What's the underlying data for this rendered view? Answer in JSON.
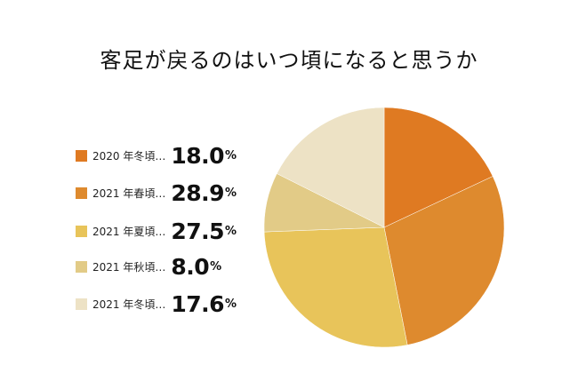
{
  "chart_data": {
    "type": "pie",
    "title": "客足が戻るのはいつ頃になると思うか",
    "unit": "%",
    "start_angle_deg": 0,
    "direction": "clockwise",
    "legend_position": "left",
    "slices": [
      {
        "label": "2020 年冬頃…",
        "value": 18.0,
        "display": "18.0",
        "color": "#DF7A22"
      },
      {
        "label": "2021 年春頃…",
        "value": 28.9,
        "display": "28.9",
        "color": "#DE8A2E"
      },
      {
        "label": "2021 年夏頃…",
        "value": 27.5,
        "display": "27.5",
        "color": "#E8C45A"
      },
      {
        "label": "2021 年秋頃…",
        "value": 8.0,
        "display": "8.0",
        "color": "#E2CB87"
      },
      {
        "label": "2021 年冬頃…",
        "value": 17.6,
        "display": "17.6",
        "color": "#EDE2C5"
      }
    ]
  }
}
